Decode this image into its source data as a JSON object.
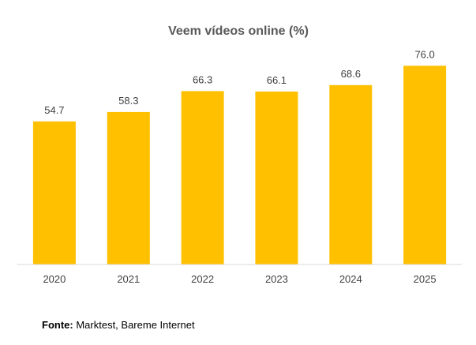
{
  "chart_data": {
    "type": "bar",
    "title": "Veem vídeos online (%)",
    "categories": [
      "2020",
      "2021",
      "2022",
      "2023",
      "2024",
      "2025"
    ],
    "values": [
      54.7,
      58.3,
      66.3,
      66.1,
      68.6,
      76.0
    ],
    "value_labels": [
      "54.7",
      "58.3",
      "66.3",
      "66.1",
      "68.6",
      "76.0"
    ],
    "xlabel": "",
    "ylabel": "",
    "ylim": [
      0,
      80
    ],
    "grid": false,
    "legend": "none",
    "bar_color": "#FFC000",
    "axis_color": "#D9D9D9"
  },
  "source": {
    "label": "Fonte:",
    "text": "Marktest, Bareme Internet"
  }
}
